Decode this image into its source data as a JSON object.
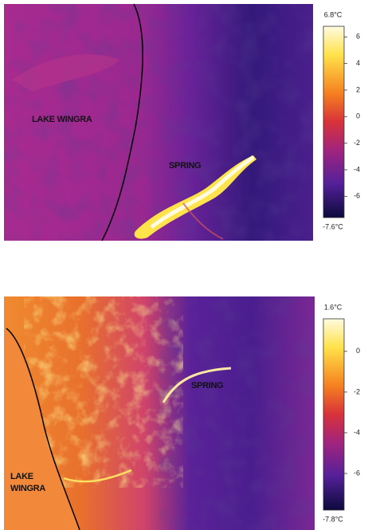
{
  "panels": [
    {
      "labels": {
        "lake": "LAKE WINGRA",
        "spring": "SPRING"
      },
      "colorbar": {
        "max": 6.8,
        "max_label": "6.8°C",
        "min": -7.6,
        "min_label": "-7.6°C",
        "ticks": [
          6,
          4,
          2,
          0,
          -2,
          -4,
          -6
        ]
      }
    },
    {
      "labels": {
        "lake": [
          "LAKE",
          "WINGRA"
        ],
        "spring": "SPRING"
      },
      "colorbar": {
        "max": 1.6,
        "max_label": "1.6°C",
        "min": -7.8,
        "min_label": "-7.8°C",
        "ticks": [
          0,
          -2,
          -4,
          -6
        ]
      }
    }
  ]
}
